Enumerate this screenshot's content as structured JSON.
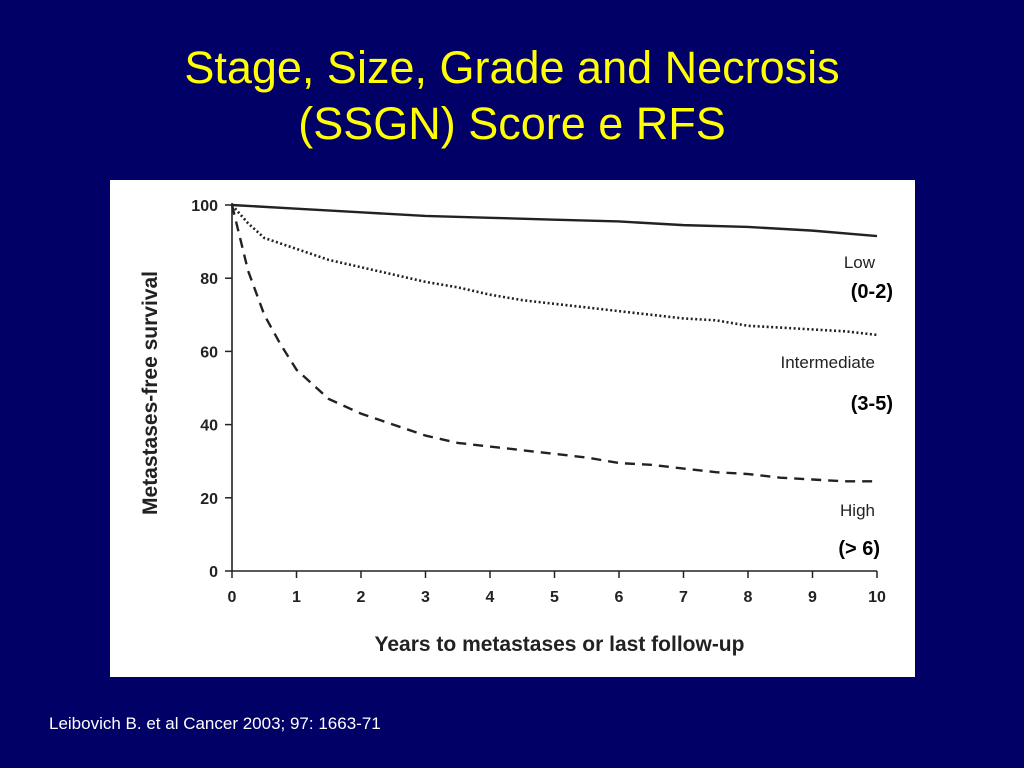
{
  "slide": {
    "title_line1": "Stage, Size, Grade and Necrosis",
    "title_line2": "(SSGN) Score e RFS",
    "citation": "Leibovich B. et al Cancer 2003; 97: 1663-71",
    "title_color": "#ffff00",
    "background_color": "#000066"
  },
  "chart_data": {
    "type": "line",
    "xlabel": "Years to metastases or last follow-up",
    "ylabel": "Metastases-free survival",
    "xlim": [
      0,
      10
    ],
    "ylim": [
      0,
      100
    ],
    "xticks": [
      "0",
      "1",
      "2",
      "3",
      "4",
      "5",
      "6",
      "7",
      "8",
      "9",
      "10"
    ],
    "yticks": [
      "0",
      "20",
      "40",
      "60",
      "80",
      "100"
    ],
    "grid": false,
    "series": [
      {
        "name": "Low",
        "range": "(0-2)",
        "style": "solid",
        "x": [
          0,
          1,
          2,
          3,
          4,
          5,
          6,
          7,
          8,
          9,
          10
        ],
        "y": [
          100,
          99,
          98,
          97,
          96.5,
          96,
          95.5,
          94.5,
          94,
          93,
          91.5
        ]
      },
      {
        "name": "Intermediate",
        "range": "(3-5)",
        "style": "dotted",
        "x": [
          0,
          0.25,
          0.5,
          1,
          1.5,
          2,
          2.5,
          3,
          3.5,
          4,
          4.5,
          5,
          5.5,
          6,
          6.5,
          7,
          7.5,
          8,
          8.5,
          9,
          9.5,
          10
        ],
        "y": [
          100,
          95,
          91,
          88,
          85,
          83,
          81,
          79,
          77.5,
          75.5,
          74,
          73,
          72,
          71,
          70,
          69,
          68.5,
          67,
          66.5,
          66,
          65.5,
          64.5
        ]
      },
      {
        "name": "High",
        "range": "(> 6)",
        "style": "dashed",
        "x": [
          0,
          0.25,
          0.5,
          0.75,
          1,
          1.25,
          1.5,
          2,
          2.5,
          3,
          3.5,
          4,
          4.5,
          5,
          5.5,
          6,
          6.5,
          7,
          7.5,
          8,
          8.5,
          9,
          9.5,
          10
        ],
        "y": [
          100,
          82,
          70,
          62,
          55,
          51,
          47,
          43,
          40,
          37,
          35,
          34,
          33,
          32,
          31,
          29.5,
          29,
          28,
          27,
          26.5,
          25.5,
          25,
          24.5,
          24.5
        ]
      }
    ]
  }
}
